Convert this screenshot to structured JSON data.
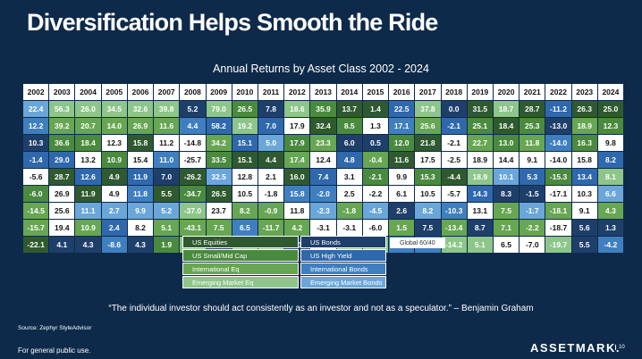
{
  "title": "Diversification Helps Smooth the Ride",
  "colors": {
    "background": "#0e2a4a",
    "US Equities": "#2f5a2f",
    "US Small/Mid Cap": "#4a8a3e",
    "International Eq": "#67a652",
    "Emerging Market Eq": "#8dc58a",
    "US Bonds": "#1f3f6b",
    "US High Yield": "#2f68ad",
    "International Bonds": "#3f7fbf",
    "Emerging Market Bonds": "#6aa6d9",
    "Global 60/40": "#ffffff"
  },
  "chart_data": {
    "type": "table",
    "title": "Annual Returns by Asset Class 2002 - 2024",
    "years": [
      "2002",
      "2003",
      "2004",
      "2005",
      "2006",
      "2007",
      "2008",
      "2009",
      "2010",
      "2011",
      "2012",
      "2013",
      "2014",
      "2015",
      "2016",
      "2017",
      "2018",
      "2019",
      "2020",
      "2021",
      "2022",
      "2023",
      "2024"
    ],
    "rows": [
      [
        {
          "v": "22.4",
          "c": "Emerging Market Bonds"
        },
        {
          "v": "56.3",
          "c": "Emerging Market Eq"
        },
        {
          "v": "26.0",
          "c": "Emerging Market Eq"
        },
        {
          "v": "34.5",
          "c": "Emerging Market Eq"
        },
        {
          "v": "32.6",
          "c": "Emerging Market Eq"
        },
        {
          "v": "39.8",
          "c": "Emerging Market Eq"
        },
        {
          "v": "5.2",
          "c": "US Bonds"
        },
        {
          "v": "79.0",
          "c": "Emerging Market Eq"
        },
        {
          "v": "26.5",
          "c": "US Small/Mid Cap"
        },
        {
          "v": "7.8",
          "c": "US Bonds"
        },
        {
          "v": "18.6",
          "c": "Emerging Market Eq"
        },
        {
          "v": "35.9",
          "c": "US Small/Mid Cap"
        },
        {
          "v": "13.7",
          "c": "US Equities"
        },
        {
          "v": "1.4",
          "c": "US Equities"
        },
        {
          "v": "22.5",
          "c": "US High Yield"
        },
        {
          "v": "37.8",
          "c": "Emerging Market Eq"
        },
        {
          "v": "0.0",
          "c": "US Bonds"
        },
        {
          "v": "31.5",
          "c": "US Equities"
        },
        {
          "v": "18.7",
          "c": "Emerging Market Eq"
        },
        {
          "v": "28.7",
          "c": "US Equities"
        },
        {
          "v": "-11.2",
          "c": "US High Yield"
        },
        {
          "v": "26.3",
          "c": "US Equities"
        },
        {
          "v": "25.0",
          "c": "US Equities"
        }
      ],
      [
        {
          "v": "12.2",
          "c": "International Bonds"
        },
        {
          "v": "39.2",
          "c": "International Eq"
        },
        {
          "v": "20.7",
          "c": "International Eq"
        },
        {
          "v": "14.0",
          "c": "International Eq"
        },
        {
          "v": "26.9",
          "c": "International Eq"
        },
        {
          "v": "11.6",
          "c": "International Eq"
        },
        {
          "v": "4.4",
          "c": "International Bonds"
        },
        {
          "v": "58.2",
          "c": "US High Yield"
        },
        {
          "v": "19.2",
          "c": "Emerging Market Eq"
        },
        {
          "v": "7.0",
          "c": "US High Yield"
        },
        {
          "v": "17.9",
          "c": "Global 60/40"
        },
        {
          "v": "32.4",
          "c": "US Equities"
        },
        {
          "v": "8.5",
          "c": "US Small/Mid Cap"
        },
        {
          "v": "1.3",
          "c": "Global 60/40"
        },
        {
          "v": "17.1",
          "c": "International Bonds"
        },
        {
          "v": "25.6",
          "c": "International Eq"
        },
        {
          "v": "-2.1",
          "c": "US High Yield"
        },
        {
          "v": "25.1",
          "c": "US Small/Mid Cap"
        },
        {
          "v": "18.4",
          "c": "US Equities"
        },
        {
          "v": "25.3",
          "c": "US Small/Mid Cap"
        },
        {
          "v": "-13.0",
          "c": "US Bonds"
        },
        {
          "v": "18.9",
          "c": "International Eq"
        },
        {
          "v": "12.3",
          "c": "US Small/Mid Cap"
        }
      ],
      [
        {
          "v": "10.3",
          "c": "US Bonds"
        },
        {
          "v": "36.6",
          "c": "US Small/Mid Cap"
        },
        {
          "v": "18.4",
          "c": "US Small/Mid Cap"
        },
        {
          "v": "12.3",
          "c": "Global 60/40"
        },
        {
          "v": "15.8",
          "c": "US Equities"
        },
        {
          "v": "11.2",
          "c": "Global 60/40"
        },
        {
          "v": "-14.8",
          "c": "Global 60/40"
        },
        {
          "v": "34.2",
          "c": "International Eq"
        },
        {
          "v": "15.1",
          "c": "US High Yield"
        },
        {
          "v": "5.0",
          "c": "Emerging Market Bonds"
        },
        {
          "v": "17.9",
          "c": "US Small/Mid Cap"
        },
        {
          "v": "23.3",
          "c": "International Eq"
        },
        {
          "v": "6.0",
          "c": "US Bonds"
        },
        {
          "v": "0.5",
          "c": "US Bonds"
        },
        {
          "v": "12.0",
          "c": "US Small/Mid Cap"
        },
        {
          "v": "21.8",
          "c": "US Equities"
        },
        {
          "v": "-2.1",
          "c": "Global 60/40"
        },
        {
          "v": "22.7",
          "c": "International Eq"
        },
        {
          "v": "13.0",
          "c": "US Small/Mid Cap"
        },
        {
          "v": "11.8",
          "c": "International Eq"
        },
        {
          "v": "-14.0",
          "c": "International Bonds"
        },
        {
          "v": "16.3",
          "c": "US Small/Mid Cap"
        },
        {
          "v": "9.8",
          "c": "Global 60/40"
        }
      ],
      [
        {
          "v": "-1.4",
          "c": "US High Yield"
        },
        {
          "v": "29.0",
          "c": "US High Yield"
        },
        {
          "v": "13.2",
          "c": "Global 60/40"
        },
        {
          "v": "10.9",
          "c": "US Small/Mid Cap"
        },
        {
          "v": "15.4",
          "c": "Global 60/40"
        },
        {
          "v": "11.0",
          "c": "International Bonds"
        },
        {
          "v": "-25.7",
          "c": "Global 60/40"
        },
        {
          "v": "33.5",
          "c": "US Small/Mid Cap"
        },
        {
          "v": "15.1",
          "c": "US Equities"
        },
        {
          "v": "4.4",
          "c": "US Equities"
        },
        {
          "v": "17.4",
          "c": "International Eq"
        },
        {
          "v": "12.4",
          "c": "Global 60/40"
        },
        {
          "v": "4.8",
          "c": "US High Yield"
        },
        {
          "v": "-0.4",
          "c": "International Eq"
        },
        {
          "v": "11.6",
          "c": "US Equities"
        },
        {
          "v": "17.5",
          "c": "Global 60/40"
        },
        {
          "v": "-2.5",
          "c": "Global 60/40"
        },
        {
          "v": "18.9",
          "c": "Global 60/40"
        },
        {
          "v": "14.4",
          "c": "Global 60/40"
        },
        {
          "v": "9.1",
          "c": "Global 60/40"
        },
        {
          "v": "-14.0",
          "c": "Global 60/40"
        },
        {
          "v": "15.8",
          "c": "Global 60/40"
        },
        {
          "v": "8.2",
          "c": "US High Yield"
        }
      ],
      [
        {
          "v": "-5.6",
          "c": "Global 60/40"
        },
        {
          "v": "28.7",
          "c": "US Equities"
        },
        {
          "v": "12.6",
          "c": "US High Yield"
        },
        {
          "v": "4.9",
          "c": "US Equities"
        },
        {
          "v": "11.9",
          "c": "US High Yield"
        },
        {
          "v": "7.0",
          "c": "US Bonds"
        },
        {
          "v": "-26.2",
          "c": "US Equities"
        },
        {
          "v": "32.5",
          "c": "Emerging Market Bonds"
        },
        {
          "v": "12.8",
          "c": "Global 60/40"
        },
        {
          "v": "2.1",
          "c": "Global 60/40"
        },
        {
          "v": "16.0",
          "c": "US Equities"
        },
        {
          "v": "7.4",
          "c": "US High Yield"
        },
        {
          "v": "3.1",
          "c": "Global 60/40"
        },
        {
          "v": "-2.1",
          "c": "US Small/Mid Cap"
        },
        {
          "v": "9.9",
          "c": "Global 60/40"
        },
        {
          "v": "15.3",
          "c": "US Small/Mid Cap"
        },
        {
          "v": "-4.4",
          "c": "US Equities"
        },
        {
          "v": "18.9",
          "c": "Emerging Market Eq"
        },
        {
          "v": "10.1",
          "c": "Emerging Market Bonds"
        },
        {
          "v": "5.3",
          "c": "US High Yield"
        },
        {
          "v": "-15.3",
          "c": "US Small/Mid Cap"
        },
        {
          "v": "13.4",
          "c": "US High Yield"
        },
        {
          "v": "8.1",
          "c": "Emerging Market Eq"
        }
      ],
      [
        {
          "v": "-6.0",
          "c": "US Small/Mid Cap"
        },
        {
          "v": "26.9",
          "c": "Global 60/40"
        },
        {
          "v": "11.9",
          "c": "US Equities"
        },
        {
          "v": "4.9",
          "c": "Global 60/40"
        },
        {
          "v": "11.8",
          "c": "International Bonds"
        },
        {
          "v": "5.5",
          "c": "US Equities"
        },
        {
          "v": "-34.7",
          "c": "US Small/Mid Cap"
        },
        {
          "v": "26.5",
          "c": "US Equities"
        },
        {
          "v": "10.5",
          "c": "Global 60/40"
        },
        {
          "v": "-1.8",
          "c": "Global 60/40"
        },
        {
          "v": "15.8",
          "c": "International Bonds"
        },
        {
          "v": "-2.0",
          "c": "International Bonds"
        },
        {
          "v": "2.5",
          "c": "Global 60/40"
        },
        {
          "v": "-2.2",
          "c": "Global 60/40"
        },
        {
          "v": "6.1",
          "c": "Global 60/40"
        },
        {
          "v": "10.5",
          "c": "Global 60/40"
        },
        {
          "v": "-5.7",
          "c": "Global 60/40"
        },
        {
          "v": "14.3",
          "c": "US High Yield"
        },
        {
          "v": "8.3",
          "c": "US Bonds"
        },
        {
          "v": "-1.5",
          "c": "US Bonds"
        },
        {
          "v": "-17.1",
          "c": "Global 60/40"
        },
        {
          "v": "10.3",
          "c": "Global 60/40"
        },
        {
          "v": "6.6",
          "c": "Emerging Market Bonds"
        }
      ],
      [
        {
          "v": "-14.5",
          "c": "International Eq"
        },
        {
          "v": "25.6",
          "c": "Global 60/40"
        },
        {
          "v": "11.1",
          "c": "Emerging Market Bonds"
        },
        {
          "v": "2.7",
          "c": "Emerging Market Bonds"
        },
        {
          "v": "9.9",
          "c": "Emerging Market Bonds"
        },
        {
          "v": "5.2",
          "c": "Emerging Market Bonds"
        },
        {
          "v": "-37.0",
          "c": "Emerging Market Eq"
        },
        {
          "v": "23.7",
          "c": "Global 60/40"
        },
        {
          "v": "8.2",
          "c": "International Eq"
        },
        {
          "v": "-0.9",
          "c": "International Eq"
        },
        {
          "v": "11.8",
          "c": "Global 60/40"
        },
        {
          "v": "-2.3",
          "c": "Emerging Market Bonds"
        },
        {
          "v": "-1.8",
          "c": "International Eq"
        },
        {
          "v": "-4.5",
          "c": "Emerging Market Bonds"
        },
        {
          "v": "2.6",
          "c": "US Bonds"
        },
        {
          "v": "8.2",
          "c": "Emerging Market Bonds"
        },
        {
          "v": "-10.3",
          "c": "International Bonds"
        },
        {
          "v": "13.1",
          "c": "Global 60/40"
        },
        {
          "v": "7.5",
          "c": "International Eq"
        },
        {
          "v": "-1.7",
          "c": "Emerging Market Bonds"
        },
        {
          "v": "-18.1",
          "c": "International Eq"
        },
        {
          "v": "9.1",
          "c": "Global 60/40"
        },
        {
          "v": "4.3",
          "c": "International Eq"
        }
      ],
      [
        {
          "v": "-15.7",
          "c": "International Eq"
        },
        {
          "v": "19.4",
          "c": "Global 60/40"
        },
        {
          "v": "10.9",
          "c": "International Eq"
        },
        {
          "v": "2.4",
          "c": "US High Yield"
        },
        {
          "v": "8.2",
          "c": "Global 60/40"
        },
        {
          "v": "5.1",
          "c": "International Eq"
        },
        {
          "v": "-43.1",
          "c": "International Eq"
        },
        {
          "v": "7.5",
          "c": "International Eq"
        },
        {
          "v": "6.5",
          "c": "International Bonds"
        },
        {
          "v": "-11.7",
          "c": "International Eq"
        },
        {
          "v": "4.2",
          "c": "International Eq"
        },
        {
          "v": "-3.1",
          "c": "Global 60/40"
        },
        {
          "v": "-3.1",
          "c": "Global 60/40"
        },
        {
          "v": "-6.0",
          "c": "Global 60/40"
        },
        {
          "v": "1.5",
          "c": "International Eq"
        },
        {
          "v": "7.5",
          "c": "US Bonds"
        },
        {
          "v": "-13.4",
          "c": "International Eq"
        },
        {
          "v": "8.7",
          "c": "US Bonds"
        },
        {
          "v": "7.1",
          "c": "International Eq"
        },
        {
          "v": "-2.2",
          "c": "International Eq"
        },
        {
          "v": "-18.7",
          "c": "Global 60/40"
        },
        {
          "v": "5.6",
          "c": "US Bonds"
        },
        {
          "v": "1.3",
          "c": "US Bonds"
        }
      ],
      [
        {
          "v": "-22.1",
          "c": "US Equities"
        },
        {
          "v": "4.1",
          "c": "US Bonds"
        },
        {
          "v": "4.3",
          "c": "US Bonds"
        },
        {
          "v": "-8.6",
          "c": "International Bonds"
        },
        {
          "v": "4.3",
          "c": "US Bonds"
        },
        {
          "v": "1.9",
          "c": "US Small/Mid Cap"
        },
        {
          "v": "-53.2",
          "c": "Emerging Market Eq"
        },
        {
          "v": "5.9",
          "c": "US Bonds"
        },
        {
          "v": "4.9",
          "c": "Emerging Market Eq"
        },
        {
          "v": "-18.2",
          "c": "Emerging Market Eq"
        },
        {
          "v": "4.1",
          "c": "US Bonds"
        },
        {
          "v": "-4.1",
          "c": "Global 60/40"
        },
        {
          "v": "-4.5",
          "c": "Emerging Market Eq"
        },
        {
          "v": "-14.6",
          "c": "Emerging Market Eq"
        },
        {
          "v": "1.5",
          "c": "International Bonds"
        },
        {
          "v": "3.5",
          "c": "International Bonds"
        },
        {
          "v": "-14.2",
          "c": "Emerging Market Eq"
        },
        {
          "v": "5.1",
          "c": "Emerging Market Eq"
        },
        {
          "v": "6.5",
          "c": "Global 60/40"
        },
        {
          "v": "-7.0",
          "c": "Global 60/40"
        },
        {
          "v": "-19.7",
          "c": "Emerging Market Eq"
        },
        {
          "v": "5.5",
          "c": "US Bonds"
        },
        {
          "v": "-4.2",
          "c": "International Bonds"
        }
      ]
    ],
    "legend": [
      "US Equities",
      "US Bonds",
      "Global 60/40",
      "US Small/Mid Cap",
      "US High Yield",
      "International Eq",
      "International Bonds",
      "Emerging Market Eq",
      "Emerging Market Bonds"
    ]
  },
  "quote": "“The individual investor should act consistently as an investor and not as a speculator.” – Benjamin Graham",
  "source": "Source: Zephyr StyleAdvisor",
  "footnote": "For general public use.",
  "logo": "ASSETMARK.",
  "page_number": "10"
}
